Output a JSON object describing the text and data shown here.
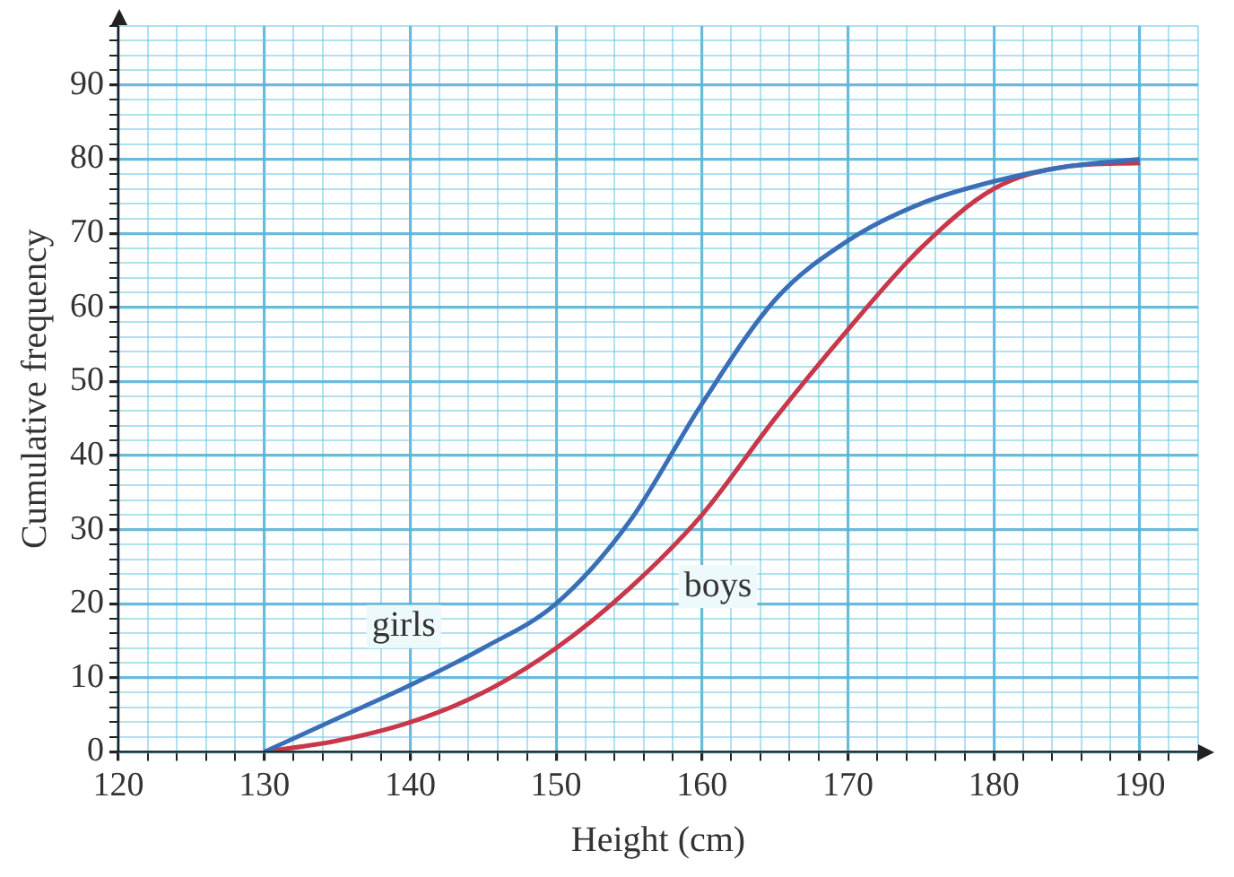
{
  "chart_data": {
    "type": "line",
    "xlabel": "Height (cm)",
    "ylabel": "Cumulative frequency",
    "xlim": [
      120,
      194
    ],
    "ylim": [
      0,
      98
    ],
    "xticks": [
      120,
      {
        "value": 122,
        "label": null
      },
      {
        "value": 124,
        "label": null
      },
      {
        "value": 126,
        "label": null
      },
      {
        "value": 128,
        "label": null
      },
      130,
      {
        "value": 132,
        "label": null
      },
      {
        "value": 134,
        "label": null
      },
      {
        "value": 136,
        "label": null
      },
      {
        "value": 138,
        "label": null
      },
      140,
      {
        "value": 142,
        "label": null
      },
      {
        "value": 144,
        "label": null
      },
      {
        "value": 146,
        "label": null
      },
      {
        "value": 148,
        "label": null
      },
      150,
      {
        "value": 152,
        "label": null
      },
      {
        "value": 154,
        "label": null
      },
      {
        "value": 156,
        "label": null
      },
      {
        "value": 158,
        "label": null
      },
      160,
      {
        "value": 162,
        "label": null
      },
      {
        "value": 164,
        "label": null
      },
      {
        "value": 166,
        "label": null
      },
      {
        "value": 168,
        "label": null
      },
      170,
      {
        "value": 172,
        "label": null
      },
      {
        "value": 174,
        "label": null
      },
      {
        "value": 176,
        "label": null
      },
      {
        "value": 178,
        "label": null
      },
      180,
      {
        "value": 182,
        "label": null
      },
      {
        "value": 184,
        "label": null
      },
      {
        "value": 186,
        "label": null
      },
      {
        "value": 188,
        "label": null
      },
      190,
      {
        "value": 192,
        "label": null
      },
      {
        "value": 194,
        "label": null
      }
    ],
    "yticks": [
      0,
      {
        "value": 2,
        "label": null
      },
      {
        "value": 4,
        "label": null
      },
      {
        "value": 6,
        "label": null
      },
      {
        "value": 8,
        "label": null
      },
      10,
      {
        "value": 12,
        "label": null
      },
      {
        "value": 14,
        "label": null
      },
      {
        "value": 16,
        "label": null
      },
      {
        "value": 18,
        "label": null
      },
      20,
      {
        "value": 22,
        "label": null
      },
      {
        "value": 24,
        "label": null
      },
      {
        "value": 26,
        "label": null
      },
      {
        "value": 28,
        "label": null
      },
      30,
      {
        "value": 32,
        "label": null
      },
      {
        "value": 34,
        "label": null
      },
      {
        "value": 36,
        "label": null
      },
      {
        "value": 38,
        "label": null
      },
      40,
      {
        "value": 42,
        "label": null
      },
      {
        "value": 44,
        "label": null
      },
      {
        "value": 46,
        "label": null
      },
      {
        "value": 48,
        "label": null
      },
      50,
      {
        "value": 52,
        "label": null
      },
      {
        "value": 54,
        "label": null
      },
      {
        "value": 56,
        "label": null
      },
      {
        "value": 58,
        "label": null
      },
      60,
      {
        "value": 62,
        "label": null
      },
      {
        "value": 64,
        "label": null
      },
      {
        "value": 66,
        "label": null
      },
      {
        "value": 68,
        "label": null
      },
      70,
      {
        "value": 72,
        "label": null
      },
      {
        "value": 74,
        "label": null
      },
      {
        "value": 76,
        "label": null
      },
      {
        "value": 78,
        "label": null
      },
      80,
      {
        "value": 82,
        "label": null
      },
      {
        "value": 84,
        "label": null
      },
      {
        "value": 86,
        "label": null
      },
      {
        "value": 88,
        "label": null
      },
      90,
      {
        "value": 92,
        "label": null
      },
      {
        "value": 94,
        "label": null
      },
      {
        "value": 96,
        "label": null
      },
      {
        "value": 98,
        "label": null
      }
    ],
    "grid": true,
    "legend": false,
    "marker": "none",
    "line_style": "solid",
    "x": [
      130,
      135,
      140,
      145,
      150,
      155,
      160,
      165,
      170,
      175,
      180,
      185,
      190
    ],
    "series": [
      {
        "name": "girls",
        "color": "#3a6fb8",
        "values": [
          0,
          4.5,
          9,
          14,
          20,
          31,
          47,
          61,
          69,
          74,
          77,
          79,
          80
        ]
      },
      {
        "name": "boys",
        "color": "#c8374a",
        "values": [
          0,
          1.5,
          4,
          8,
          14,
          22,
          32,
          45,
          57,
          68,
          76,
          79,
          79.5
        ]
      }
    ]
  }
}
